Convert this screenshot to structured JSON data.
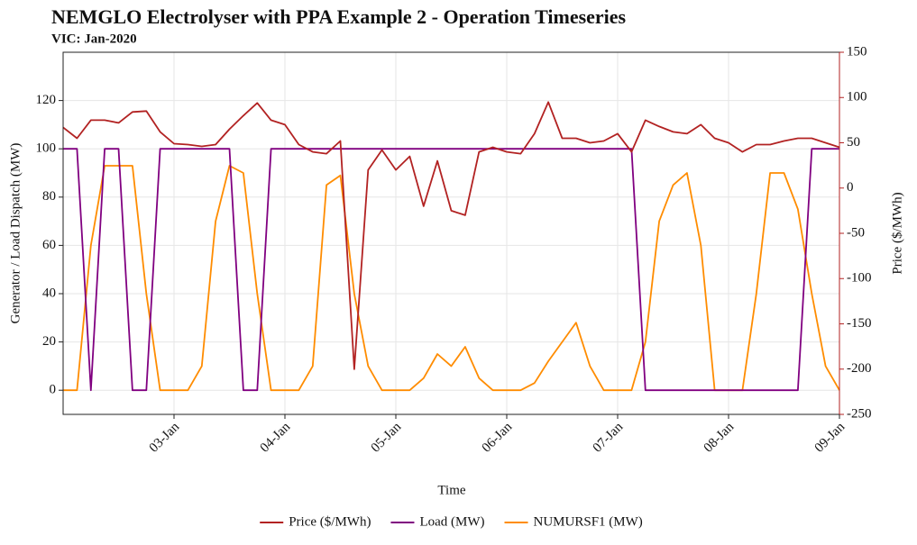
{
  "chart_data": {
    "type": "line",
    "title": "NEMGLO Electrolyser with PPA Example 2 - Operation Timeseries",
    "subtitle": "VIC: Jan-2020",
    "x_label": "Time",
    "y_label": "Generator / Load Dispatch (MW)",
    "y2_label": "Price ($/MWh)",
    "y2_color": "#b22222",
    "grid": true,
    "legend": "bottom",
    "x": [
      "2020-01-02T00:00",
      "2020-01-02T03:00",
      "2020-01-02T06:00",
      "2020-01-02T09:00",
      "2020-01-02T12:00",
      "2020-01-02T15:00",
      "2020-01-02T18:00",
      "2020-01-02T21:00",
      "2020-01-03T00:00",
      "2020-01-03T03:00",
      "2020-01-03T06:00",
      "2020-01-03T09:00",
      "2020-01-03T12:00",
      "2020-01-03T15:00",
      "2020-01-03T18:00",
      "2020-01-03T21:00",
      "2020-01-04T00:00",
      "2020-01-04T03:00",
      "2020-01-04T06:00",
      "2020-01-04T09:00",
      "2020-01-04T12:00",
      "2020-01-04T15:00",
      "2020-01-04T18:00",
      "2020-01-04T21:00",
      "2020-01-05T00:00",
      "2020-01-05T03:00",
      "2020-01-05T06:00",
      "2020-01-05T09:00",
      "2020-01-05T12:00",
      "2020-01-05T15:00",
      "2020-01-05T18:00",
      "2020-01-05T21:00",
      "2020-01-06T00:00",
      "2020-01-06T03:00",
      "2020-01-06T06:00",
      "2020-01-06T09:00",
      "2020-01-06T12:00",
      "2020-01-06T15:00",
      "2020-01-06T18:00",
      "2020-01-06T21:00",
      "2020-01-07T00:00",
      "2020-01-07T03:00",
      "2020-01-07T06:00",
      "2020-01-07T09:00",
      "2020-01-07T12:00",
      "2020-01-07T15:00",
      "2020-01-07T18:00",
      "2020-01-07T21:00",
      "2020-01-08T00:00",
      "2020-01-08T03:00",
      "2020-01-08T06:00",
      "2020-01-08T09:00",
      "2020-01-08T12:00",
      "2020-01-08T15:00",
      "2020-01-08T18:00",
      "2020-01-08T21:00",
      "2020-01-09T00:00"
    ],
    "xlim": [
      "2020-01-02T00:00",
      "2020-01-09T00:00"
    ],
    "xticks": [
      {
        "value": "2020-01-03T00:00",
        "label": "03-Jan"
      },
      {
        "value": "2020-01-04T00:00",
        "label": "04-Jan"
      },
      {
        "value": "2020-01-05T00:00",
        "label": "05-Jan"
      },
      {
        "value": "2020-01-06T00:00",
        "label": "06-Jan"
      },
      {
        "value": "2020-01-07T00:00",
        "label": "07-Jan"
      },
      {
        "value": "2020-01-08T00:00",
        "label": "08-Jan"
      },
      {
        "value": "2020-01-09T00:00",
        "label": "09-Jan"
      }
    ],
    "ylim": [
      -10,
      140
    ],
    "yticks": [
      0,
      20,
      40,
      60,
      80,
      100,
      120
    ],
    "y2lim": [
      -250,
      150
    ],
    "y2ticks": [
      -250,
      -200,
      -150,
      -100,
      -50,
      0,
      50,
      100,
      150
    ],
    "series": [
      {
        "name": "Price ($/MWh)",
        "color": "#b22222",
        "axis": "y2",
        "values": [
          67,
          55,
          75,
          75,
          72,
          84,
          85,
          62,
          49,
          48,
          46,
          48,
          65,
          80,
          94,
          75,
          70,
          48,
          40,
          38,
          52,
          -200,
          20,
          42,
          20,
          35,
          -20,
          30,
          -25,
          -30,
          40,
          45,
          40,
          38,
          60,
          95,
          55,
          55,
          50,
          52,
          60,
          40,
          75,
          68,
          62,
          60,
          70,
          55,
          50,
          40,
          48,
          48,
          52,
          55,
          55,
          50,
          45
        ]
      },
      {
        "name": "Load (MW)",
        "color": "#800080",
        "values": [
          100,
          100,
          0,
          100,
          100,
          0,
          0,
          100,
          100,
          100,
          100,
          100,
          100,
          0,
          0,
          100,
          100,
          100,
          100,
          100,
          100,
          100,
          100,
          100,
          100,
          100,
          100,
          100,
          100,
          100,
          100,
          100,
          100,
          100,
          100,
          100,
          100,
          100,
          100,
          100,
          100,
          100,
          0,
          0,
          0,
          0,
          0,
          0,
          0,
          0,
          0,
          0,
          0,
          0,
          100,
          100,
          100
        ]
      },
      {
        "name": "NUMURSF1 (MW)",
        "color": "#ff8c00",
        "values": [
          0,
          0,
          60,
          93,
          93,
          93,
          40,
          0,
          0,
          0,
          10,
          70,
          93,
          90,
          40,
          0,
          0,
          0,
          10,
          85,
          89,
          40,
          10,
          0,
          0,
          0,
          5,
          15,
          10,
          18,
          5,
          0,
          0,
          0,
          3,
          12,
          20,
          28,
          10,
          0,
          0,
          0,
          20,
          70,
          85,
          90,
          60,
          0,
          0,
          0,
          40,
          90,
          90,
          75,
          40,
          10,
          0
        ]
      }
    ]
  }
}
